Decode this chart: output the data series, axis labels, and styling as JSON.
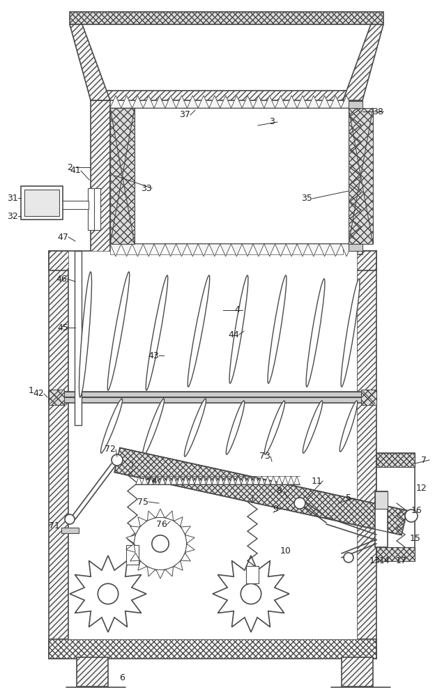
{
  "bg_color": "#ffffff",
  "lc": "#4a4a4a",
  "fig_w": 6.24,
  "fig_h": 10.0,
  "dpi": 100,
  "hatch_lc": "#4a4a4a",
  "hatch_fc": "#f5f5f5"
}
